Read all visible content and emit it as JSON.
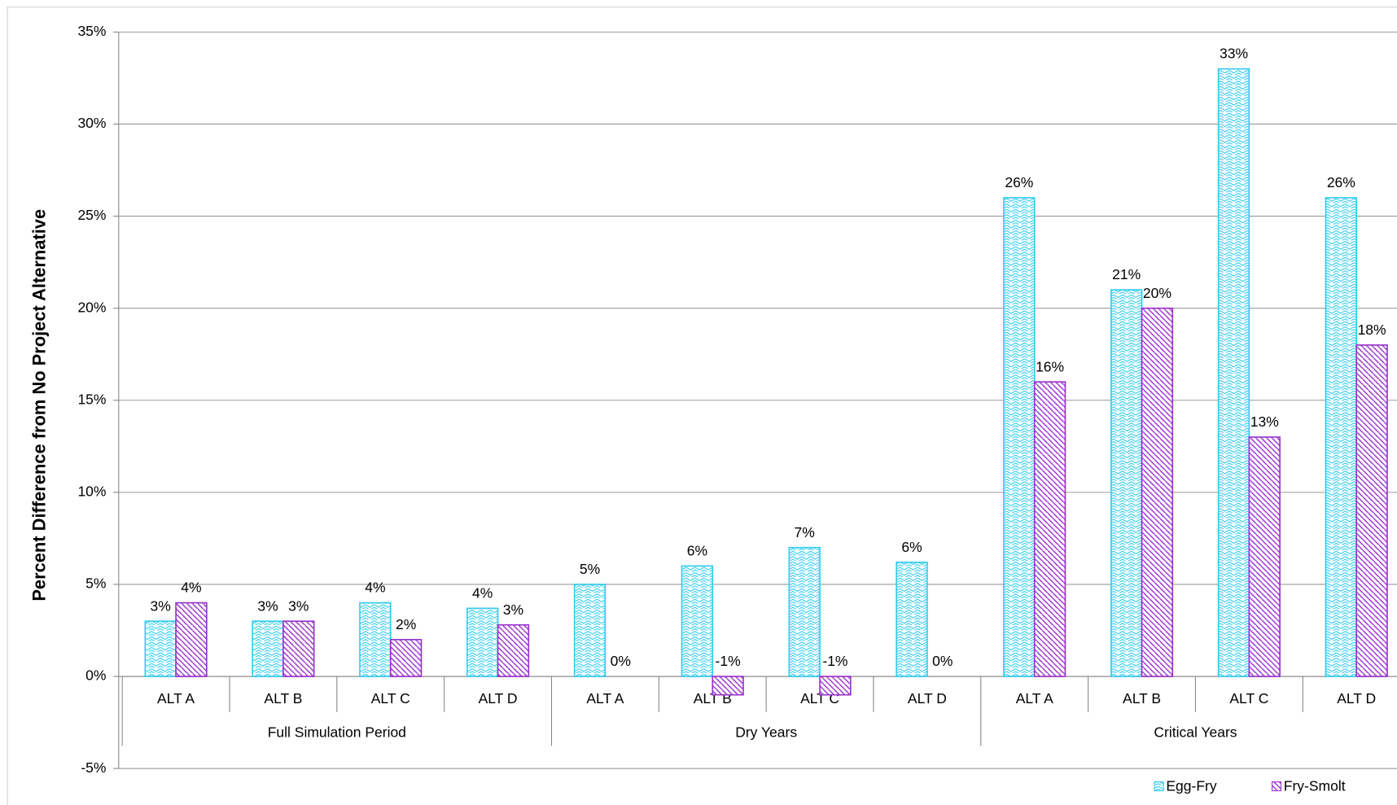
{
  "chart_data": {
    "type": "bar",
    "y_label": "Percent Difference from No Project Alternative",
    "categories": [
      "ALT  A",
      "ALT  B",
      "ALT  C",
      "ALT  D",
      "ALT  A",
      "ALT  B",
      "ALT  C",
      "ALT  D",
      "ALT  A",
      "ALT  B",
      "ALT  C",
      "ALT  D"
    ],
    "groups": [
      "Full Simulation Period",
      "Dry Years",
      "Critical Years"
    ],
    "series": [
      {
        "name": "Egg-Fry",
        "color": "#33ccee",
        "values": [
          3,
          3,
          4,
          3.7,
          5,
          6,
          7,
          6.2,
          26,
          21,
          33,
          26
        ],
        "value_labels": [
          "3%",
          "3%",
          "4%",
          "4%",
          "5%",
          "6%",
          "7%",
          "6%",
          "26%",
          "21%",
          "33%",
          "26%"
        ]
      },
      {
        "name": "Fry-Smolt",
        "color": "#9933cc",
        "values": [
          4,
          3,
          2,
          2.8,
          0,
          -1,
          -1,
          0,
          16,
          20,
          13,
          18
        ],
        "value_labels": [
          "4%",
          "3%",
          "2%",
          "3%",
          "0%",
          "-1%",
          "-1%",
          "0%",
          "16%",
          "20%",
          "13%",
          "18%"
        ]
      }
    ],
    "ylim": [
      -5,
      35
    ],
    "yticks": [
      {
        "value": -5,
        "label": "-5%"
      },
      {
        "value": 0,
        "label": "0%"
      },
      {
        "value": 5,
        "label": "5%"
      },
      {
        "value": 10,
        "label": "10%"
      },
      {
        "value": 15,
        "label": "15%"
      },
      {
        "value": 20,
        "label": "20%"
      },
      {
        "value": 25,
        "label": "25%"
      },
      {
        "value": 30,
        "label": "30%"
      },
      {
        "value": 35,
        "label": "35%"
      }
    ],
    "grid": true,
    "legend": "bottom-right"
  }
}
